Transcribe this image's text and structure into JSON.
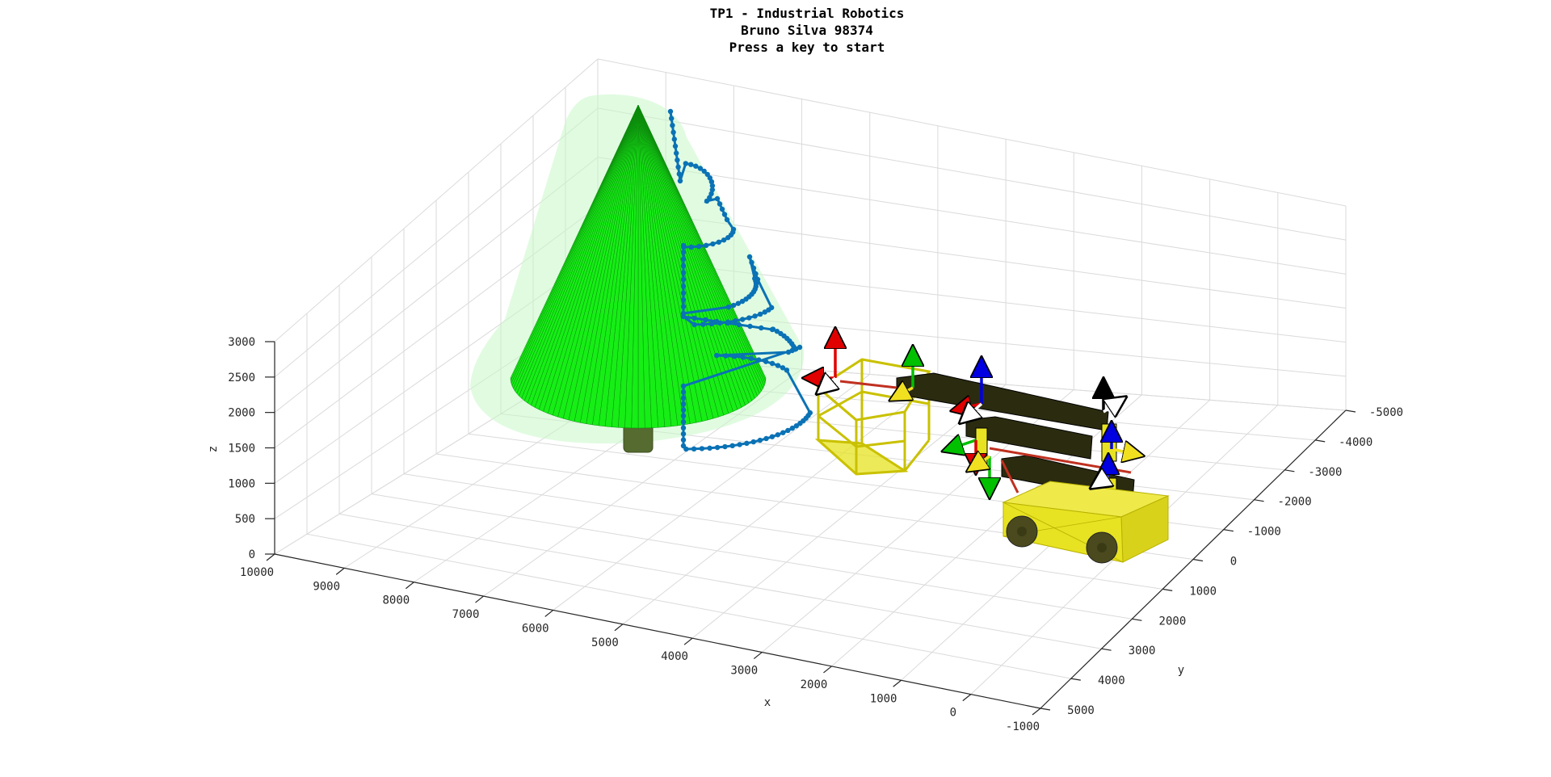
{
  "figure": {
    "title_lines": [
      "TP1 - Industrial Robotics",
      "Bruno Silva 98374",
      "Press a key to start"
    ]
  },
  "axes": {
    "x_label": "x",
    "y_label": "y",
    "z_label": "z",
    "x_ticks": [
      "10000",
      "9000",
      "8000",
      "7000",
      "6000",
      "5000",
      "4000",
      "3000",
      "2000",
      "1000",
      "0",
      "-1000"
    ],
    "y_ticks": [
      "-5000",
      "-4000",
      "-3000",
      "-2000",
      "-1000",
      "0",
      "1000",
      "2000",
      "3000",
      "4000",
      "5000"
    ],
    "z_ticks": [
      "0",
      "500",
      "1000",
      "1500",
      "2000",
      "2500",
      "3000"
    ],
    "x_range": [
      -1000,
      10000
    ],
    "y_range": [
      -5000,
      5000
    ],
    "z_range": [
      0,
      3000
    ],
    "grid": true
  },
  "scene_objects": {
    "tree": {
      "cone_color": "#16ee16",
      "trunk_color": "#556b2f",
      "halo_color": "#c8f7c8"
    },
    "trajectory": {
      "color": "#0a72b5"
    },
    "robot_colors": {
      "link": "#2b2b10",
      "frame_box": "#e7e322",
      "vehicle": "#e7e322",
      "wheel": "#4a4a1e"
    },
    "axis_frame_colors": {
      "x": "#e00000",
      "y": "#00c000",
      "z": "#0000e0"
    }
  },
  "colors": {
    "background": "#ffffff",
    "grid": "#dadada",
    "axis_line": "#262626"
  }
}
